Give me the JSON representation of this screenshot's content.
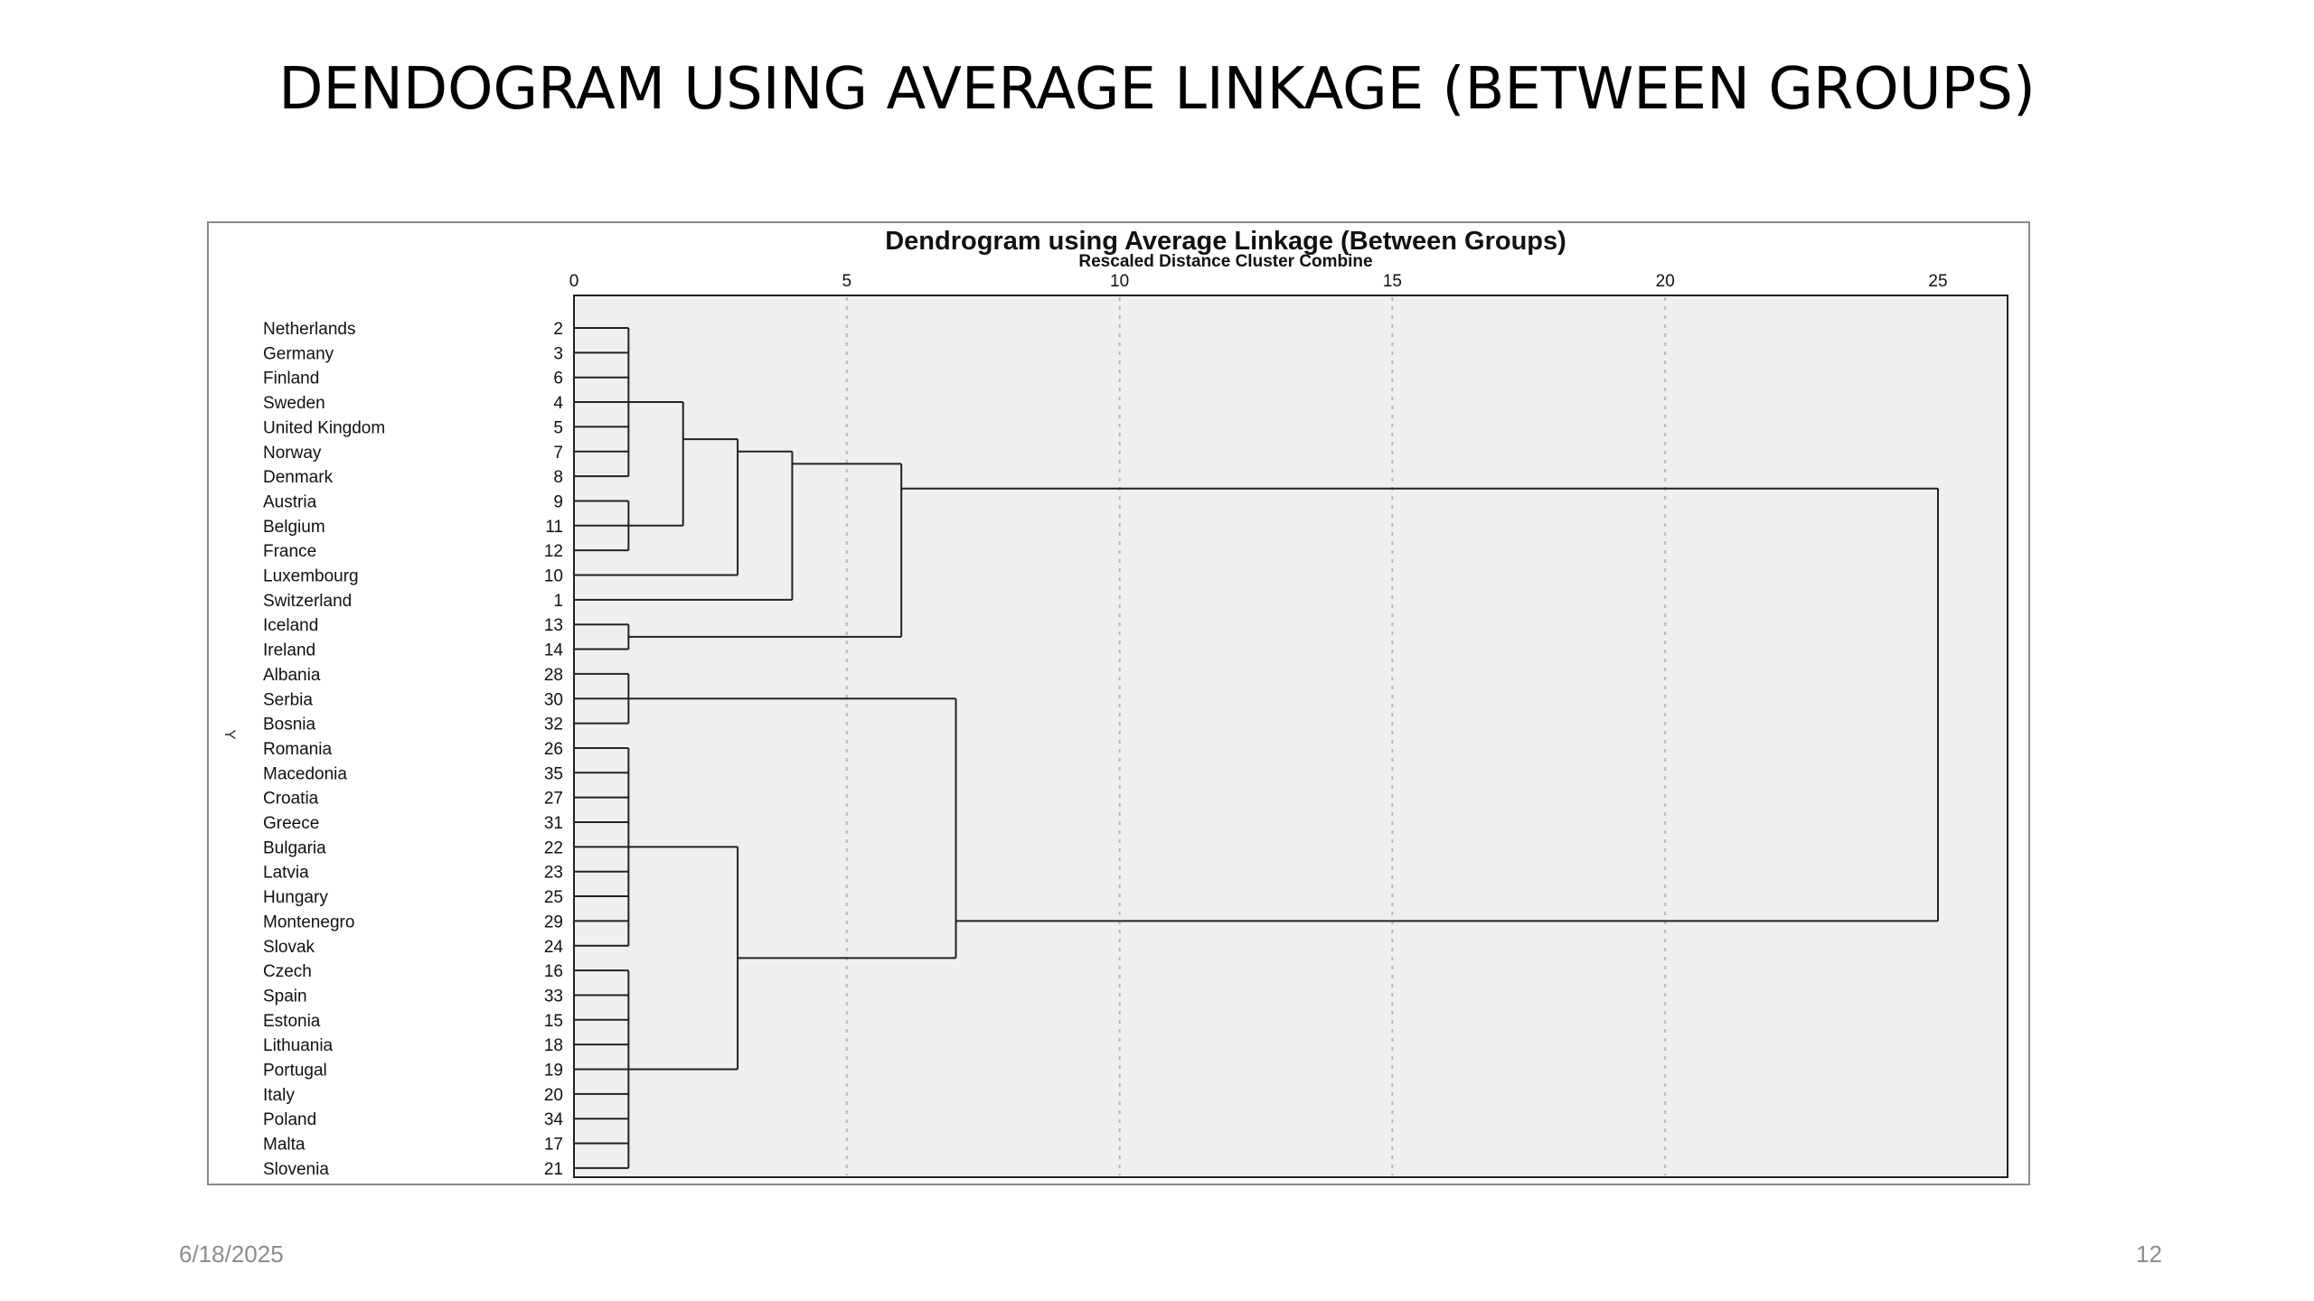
{
  "slide": {
    "title": "DENDOGRAM USING AVERAGE LINKAGE (BETWEEN GROUPS)",
    "date": "6/18/2025",
    "page_number": "12"
  },
  "chart_data": {
    "type": "dendrogram",
    "title": "Dendrogram using Average Linkage (Between Groups)",
    "xlabel": "Rescaled Distance Cluster Combine",
    "side_label": "Y",
    "x_ticks": [
      0,
      5,
      10,
      15,
      20,
      25
    ],
    "xlim": [
      0,
      25
    ],
    "grid": true,
    "leaves": [
      {
        "label": "Netherlands",
        "id": "2"
      },
      {
        "label": "Germany",
        "id": "3"
      },
      {
        "label": "Finland",
        "id": "6"
      },
      {
        "label": "Sweden",
        "id": "4"
      },
      {
        "label": "United Kingdom",
        "id": "5"
      },
      {
        "label": "Norway",
        "id": "7"
      },
      {
        "label": "Denmark",
        "id": "8"
      },
      {
        "label": "Austria",
        "id": "9"
      },
      {
        "label": "Belgium",
        "id": "11"
      },
      {
        "label": "France",
        "id": "12"
      },
      {
        "label": "Luxembourg",
        "id": "10"
      },
      {
        "label": "Switzerland",
        "id": "1"
      },
      {
        "label": "Iceland",
        "id": "13"
      },
      {
        "label": "Ireland",
        "id": "14"
      },
      {
        "label": "Albania",
        "id": "28"
      },
      {
        "label": "Serbia",
        "id": "30"
      },
      {
        "label": "Bosnia",
        "id": "32"
      },
      {
        "label": "Romania",
        "id": "26"
      },
      {
        "label": "Macedonia",
        "id": "35"
      },
      {
        "label": "Croatia",
        "id": "27"
      },
      {
        "label": "Greece",
        "id": "31"
      },
      {
        "label": "Bulgaria",
        "id": "22"
      },
      {
        "label": "Latvia",
        "id": "23"
      },
      {
        "label": "Hungary",
        "id": "25"
      },
      {
        "label": "Montenegro",
        "id": "29"
      },
      {
        "label": "Slovak",
        "id": "24"
      },
      {
        "label": "Czech",
        "id": "16"
      },
      {
        "label": "Spain",
        "id": "33"
      },
      {
        "label": "Estonia",
        "id": "15"
      },
      {
        "label": "Lithuania",
        "id": "18"
      },
      {
        "label": "Portugal",
        "id": "19"
      },
      {
        "label": "Italy",
        "id": "20"
      },
      {
        "label": "Poland",
        "id": "34"
      },
      {
        "label": "Malta",
        "id": "17"
      },
      {
        "label": "Slovenia",
        "id": "21"
      }
    ],
    "merges": [
      {
        "leaves": [
          0,
          6
        ],
        "height": 1.0
      },
      {
        "leaves": [
          7,
          9
        ],
        "height": 1.0
      },
      {
        "leaves": [
          12,
          13
        ],
        "height": 1.0
      },
      {
        "leaves": [
          14,
          16
        ],
        "height": 1.0
      },
      {
        "leaves": [
          17,
          25
        ],
        "height": 1.0
      },
      {
        "leaves": [
          26,
          34
        ],
        "height": 1.0
      },
      {
        "leaves": [
          0,
          9
        ],
        "height": 2.0
      },
      {
        "leaves": [
          0,
          10
        ],
        "height": 3.0
      },
      {
        "leaves": [
          0,
          11
        ],
        "height": 4.0
      },
      {
        "leaves": [
          0,
          13
        ],
        "height": 6.0
      },
      {
        "leaves": [
          17,
          34
        ],
        "height": 3.0
      },
      {
        "leaves": [
          14,
          34
        ],
        "height": 7.0
      },
      {
        "leaves": [
          0,
          34
        ],
        "height": 25.0
      }
    ]
  }
}
